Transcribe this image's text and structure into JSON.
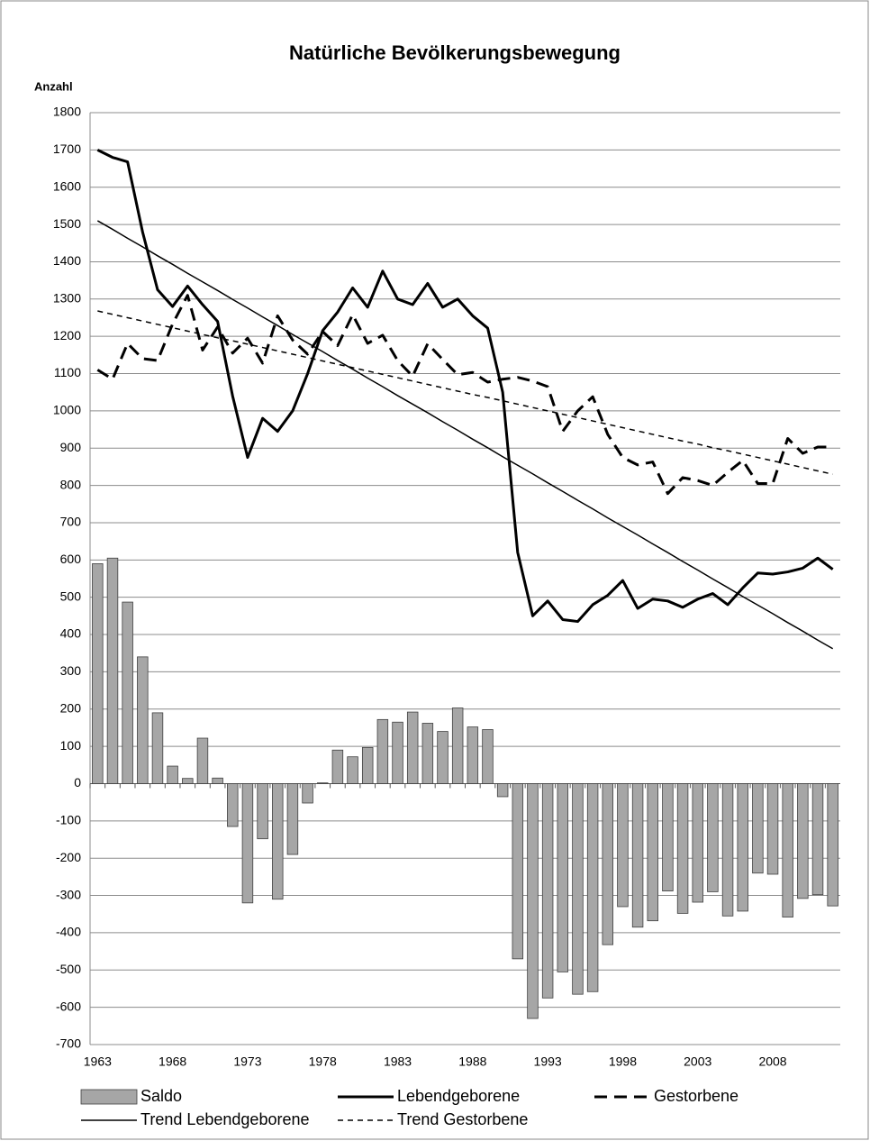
{
  "chart_data": {
    "type": "bar",
    "title": "Natürliche Bevölkerungsbewegung",
    "y_label": "Anzahl",
    "categories": [
      "1963",
      null,
      null,
      null,
      null,
      "1968",
      null,
      null,
      null,
      null,
      "1973",
      null,
      null,
      null,
      null,
      "1978",
      null,
      null,
      null,
      null,
      "1983",
      null,
      null,
      null,
      null,
      "1988",
      null,
      null,
      null,
      null,
      "1993",
      null,
      null,
      null,
      null,
      "1998",
      null,
      null,
      null,
      null,
      "2003",
      null,
      null,
      null,
      null,
      "2008",
      null,
      null,
      null,
      null
    ],
    "ylim": [
      -700,
      1800
    ],
    "yticks": [
      -700,
      -600,
      -500,
      -400,
      -300,
      -200,
      -100,
      0,
      100,
      200,
      300,
      400,
      500,
      600,
      700,
      800,
      900,
      1000,
      1100,
      1200,
      1300,
      1400,
      1500,
      1600,
      1700,
      1800
    ],
    "grid": true,
    "series": [
      {
        "name": "Saldo",
        "type": "bar",
        "color": "#a6a6a6",
        "values": [
          590,
          605,
          487,
          340,
          190,
          47,
          14,
          122,
          15,
          -115,
          -320,
          -148,
          -310,
          -190,
          -52,
          2,
          90,
          72,
          97,
          172,
          165,
          192,
          162,
          140,
          203,
          152,
          145,
          -35,
          -470,
          -630,
          -575,
          -505,
          -565,
          -558,
          -432,
          -330,
          -385,
          -368,
          -288,
          -348,
          -318,
          -290,
          -355,
          -342,
          -240,
          -243,
          -358,
          -308,
          -298,
          -328
        ]
      },
      {
        "name": "Lebendgeborene",
        "type": "line",
        "color": "#000000",
        "line_style": "solid",
        "line_width": 3,
        "values": [
          1700,
          1680,
          1668,
          1480,
          1325,
          1280,
          1335,
          1285,
          1240,
          1040,
          875,
          980,
          945,
          1000,
          1100,
          1215,
          1265,
          1330,
          1278,
          1375,
          1300,
          1285,
          1342,
          1278,
          1300,
          1255,
          1222,
          1050,
          620,
          450,
          490,
          440,
          435,
          480,
          505,
          545,
          470,
          495,
          490,
          473,
          495,
          510,
          480,
          525,
          565,
          562,
          568,
          578,
          605,
          575
        ]
      },
      {
        "name": "Gestorbene",
        "type": "line",
        "color": "#000000",
        "line_style": "dashed",
        "line_width": 3,
        "values": [
          1110,
          1085,
          1181,
          1140,
          1135,
          1233,
          1310,
          1163,
          1225,
          1155,
          1195,
          1128,
          1255,
          1190,
          1152,
          1213,
          1175,
          1258,
          1181,
          1203,
          1135,
          1093,
          1180,
          1138,
          1097,
          1103,
          1077,
          1085,
          1090,
          1080,
          1065,
          945,
          1000,
          1038,
          937,
          875,
          855,
          863,
          778,
          821,
          813,
          800,
          835,
          867,
          805,
          805,
          926,
          886,
          903,
          903
        ]
      },
      {
        "name": "Trend Lebendgeborene",
        "type": "line",
        "color": "#000000",
        "line_style": "solid",
        "line_width": 1.5,
        "values": [
          1510,
          1487,
          1463,
          1440,
          1416,
          1393,
          1369,
          1346,
          1323,
          1299,
          1276,
          1252,
          1229,
          1205,
          1182,
          1159,
          1135,
          1112,
          1088,
          1065,
          1041,
          1018,
          995,
          971,
          948,
          924,
          901,
          877,
          854,
          831,
          807,
          784,
          760,
          737,
          713,
          690,
          667,
          643,
          620,
          596,
          573,
          549,
          526,
          502,
          479,
          456,
          432,
          409,
          385,
          362
        ]
      },
      {
        "name": "Trend Gestorbene",
        "type": "line",
        "color": "#000000",
        "line_style": "dashed",
        "line_width": 1.5,
        "values": [
          1268,
          1259,
          1250,
          1241,
          1232,
          1223,
          1214,
          1205,
          1196,
          1188,
          1179,
          1170,
          1161,
          1152,
          1143,
          1134,
          1125,
          1116,
          1107,
          1098,
          1089,
          1080,
          1071,
          1062,
          1053,
          1044,
          1036,
          1027,
          1018,
          1009,
          1000,
          991,
          982,
          973,
          964,
          955,
          946,
          937,
          928,
          919,
          911,
          901,
          893,
          884,
          875,
          866,
          857,
          848,
          839,
          830
        ]
      }
    ]
  }
}
